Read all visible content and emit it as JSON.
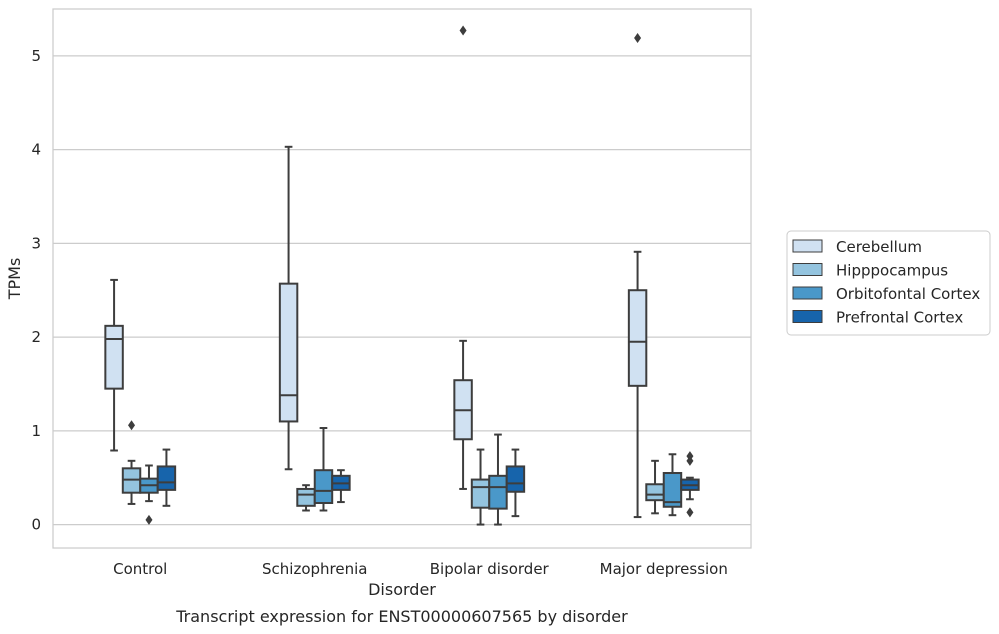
{
  "chart_data": {
    "type": "box",
    "title": "",
    "caption": "Transcript expression for ENST00000607565 by disorder",
    "xlabel": "Disorder",
    "ylabel": "TPMs",
    "ylim": [
      -0.25,
      5.5
    ],
    "yticks": [
      0,
      1,
      2,
      3,
      4,
      5
    ],
    "grid": true,
    "legend_position": "right",
    "categories": [
      "Control",
      "Schizophrenia",
      "Bipolar disorder",
      "Major depression"
    ],
    "series": [
      {
        "name": "Cerebellum",
        "color": "#d0e1f2",
        "boxes": [
          {
            "whisker_low": 0.79,
            "q1": 1.45,
            "median": 1.98,
            "q3": 2.12,
            "whisker_high": 2.61,
            "outliers": []
          },
          {
            "whisker_low": 0.59,
            "q1": 1.1,
            "median": 1.38,
            "q3": 2.57,
            "whisker_high": 4.03,
            "outliers": []
          },
          {
            "whisker_low": 0.38,
            "q1": 0.91,
            "median": 1.22,
            "q3": 1.54,
            "whisker_high": 1.96,
            "outliers": [
              5.27
            ]
          },
          {
            "whisker_low": 0.08,
            "q1": 1.48,
            "median": 1.95,
            "q3": 2.5,
            "whisker_high": 2.91,
            "outliers": [
              5.19
            ]
          }
        ]
      },
      {
        "name": "Hipppocampus",
        "color": "#94c4df",
        "boxes": [
          {
            "whisker_low": 0.22,
            "q1": 0.34,
            "median": 0.48,
            "q3": 0.6,
            "whisker_high": 0.68,
            "outliers": [
              1.06
            ]
          },
          {
            "whisker_low": 0.15,
            "q1": 0.2,
            "median": 0.32,
            "q3": 0.38,
            "whisker_high": 0.42,
            "outliers": []
          },
          {
            "whisker_low": 0.0,
            "q1": 0.18,
            "median": 0.4,
            "q3": 0.48,
            "whisker_high": 0.8,
            "outliers": []
          },
          {
            "whisker_low": 0.12,
            "q1": 0.26,
            "median": 0.32,
            "q3": 0.43,
            "whisker_high": 0.68,
            "outliers": []
          }
        ]
      },
      {
        "name": "Orbitofontal Cortex",
        "color": "#4a98c9",
        "boxes": [
          {
            "whisker_low": 0.25,
            "q1": 0.34,
            "median": 0.42,
            "q3": 0.49,
            "whisker_high": 0.63,
            "outliers": [
              0.05
            ]
          },
          {
            "whisker_low": 0.15,
            "q1": 0.23,
            "median": 0.36,
            "q3": 0.58,
            "whisker_high": 1.03,
            "outliers": []
          },
          {
            "whisker_low": 0.0,
            "q1": 0.17,
            "median": 0.4,
            "q3": 0.52,
            "whisker_high": 0.96,
            "outliers": []
          },
          {
            "whisker_low": 0.1,
            "q1": 0.19,
            "median": 0.24,
            "q3": 0.55,
            "whisker_high": 0.75,
            "outliers": []
          }
        ]
      },
      {
        "name": "Prefrontal Cortex",
        "color": "#1764ab",
        "boxes": [
          {
            "whisker_low": 0.2,
            "q1": 0.37,
            "median": 0.45,
            "q3": 0.62,
            "whisker_high": 0.8,
            "outliers": []
          },
          {
            "whisker_low": 0.24,
            "q1": 0.37,
            "median": 0.44,
            "q3": 0.52,
            "whisker_high": 0.58,
            "outliers": []
          },
          {
            "whisker_low": 0.09,
            "q1": 0.35,
            "median": 0.44,
            "q3": 0.62,
            "whisker_high": 0.8,
            "outliers": []
          },
          {
            "whisker_low": 0.27,
            "q1": 0.37,
            "median": 0.42,
            "q3": 0.48,
            "whisker_high": 0.5,
            "outliers": [
              0.73,
              0.68,
              0.13
            ]
          }
        ]
      }
    ]
  }
}
